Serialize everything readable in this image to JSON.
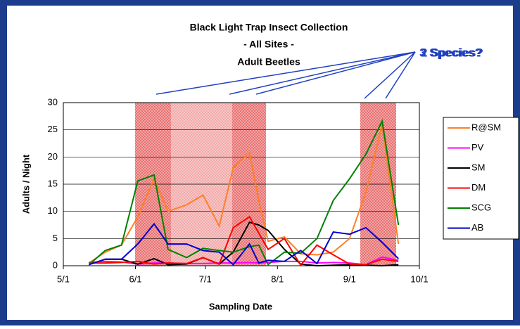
{
  "chart_data": {
    "type": "line",
    "title": [
      "Black Light Trap Insect Collection",
      "- All Sites -",
      "Adult Beetles"
    ],
    "annotations": [
      "2 Species?",
      "3 Species?"
    ],
    "xlabel": "Sampling Date",
    "ylabel": "Adults / Night",
    "x": [
      "5/12",
      "5/19",
      "5/26",
      "6/2",
      "6/9",
      "6/15",
      "6/23",
      "6/30",
      "7/7",
      "7/13",
      "7/20",
      "7/24",
      "7/28",
      "8/4",
      "8/11",
      "8/18",
      "8/25",
      "9/1",
      "9/8",
      "9/15",
      "9/22"
    ],
    "xlim": [
      "5/1",
      "10/1"
    ],
    "xticks": [
      "5/1",
      "6/1",
      "7/1",
      "8/1",
      "9/1",
      "10/1"
    ],
    "ylim": [
      0,
      30
    ],
    "yticks": [
      0,
      5,
      10,
      15,
      20,
      25,
      30
    ],
    "grid": true,
    "series": [
      {
        "name": "R@SM",
        "color": "#ff7f27",
        "values": [
          0.5,
          2.5,
          3.8,
          9,
          16,
          10,
          11.2,
          13,
          7.3,
          18,
          20.8,
          12,
          4.5,
          5.3,
          2.2,
          2,
          2.5,
          5,
          13.5,
          26,
          4
        ]
      },
      {
        "name": "PV",
        "color": "#ff00ff",
        "values": [
          0.6,
          0.8,
          0.7,
          0.3,
          0.5,
          0.5,
          0.4,
          0.4,
          0.5,
          0.5,
          0.6,
          0.5,
          0.6,
          0.8,
          0.8,
          0.5,
          0.6,
          0.5,
          0.2,
          1.6,
          1
        ]
      },
      {
        "name": "SM",
        "color": "#000000",
        "values": [
          0.2,
          1.2,
          1.2,
          0.3,
          1.3,
          0.2,
          0.3,
          1.5,
          0.3,
          2.5,
          8,
          7.5,
          6.5,
          3,
          0.3,
          0,
          0.1,
          0.2,
          0.1,
          0,
          0.2
        ]
      },
      {
        "name": "DM",
        "color": "#ff0000",
        "values": [
          0.5,
          0.5,
          0.6,
          0.8,
          0.3,
          0.5,
          0.4,
          1.5,
          0.3,
          7,
          9,
          6,
          3,
          5,
          0.1,
          3.8,
          2,
          0.3,
          0.2,
          1.2,
          0.8
        ]
      },
      {
        "name": "SCG",
        "color": "#008000",
        "values": [
          0.2,
          2.8,
          3.8,
          15.6,
          16.7,
          3,
          1.5,
          3.2,
          2.8,
          2.5,
          3.5,
          3.8,
          0.2,
          2.5,
          2.3,
          5,
          12,
          16,
          20.5,
          26.6,
          7.5
        ]
      },
      {
        "name": "AB",
        "color": "#0000cc",
        "values": [
          0.2,
          1.2,
          1.2,
          4,
          7.7,
          4,
          4,
          2.8,
          2.5,
          0.2,
          4,
          0.5,
          1,
          0.8,
          2.8,
          0.4,
          6.2,
          5.8,
          7,
          4.3,
          1.3
        ]
      }
    ]
  }
}
